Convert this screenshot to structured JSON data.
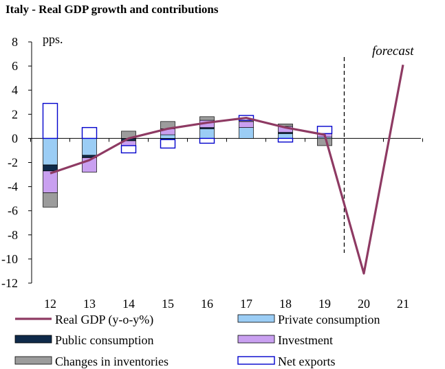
{
  "chart_data": {
    "type": "bar",
    "title": "Italy - Real GDP growth and contributions",
    "ylabel": "pps.",
    "xlabel": "",
    "ylim": [
      -12,
      8
    ],
    "yticks": [
      8,
      6,
      4,
      2,
      0,
      -2,
      -4,
      -6,
      -8,
      -10,
      -12
    ],
    "categories": [
      "12",
      "13",
      "14",
      "15",
      "16",
      "17",
      "18",
      "19",
      "20",
      "21"
    ],
    "annotation": "forecast",
    "forecast_from": "20",
    "colors": {
      "gdp_line": "#8e3a63",
      "private": "#9bcdf5",
      "public": "#0f2a4a",
      "investment": "#c9a0f0",
      "inventories": "#9c9c9c",
      "netexports": "#ffffff",
      "netexports_border": "#0000cc"
    },
    "series": [
      {
        "name": "Private consumption",
        "key": "private",
        "kind": "bar",
        "values": [
          -2.2,
          -1.4,
          0.0,
          0.3,
          0.8,
          0.9,
          0.4,
          0.1,
          null,
          null
        ]
      },
      {
        "name": "Public consumption",
        "key": "public",
        "kind": "bar",
        "values": [
          -0.5,
          -0.2,
          -0.2,
          -0.1,
          0.1,
          0.0,
          0.1,
          0.0,
          null,
          null
        ]
      },
      {
        "name": "Investment",
        "key": "investment",
        "kind": "bar",
        "values": [
          -1.8,
          -1.2,
          -0.4,
          0.5,
          0.6,
          0.5,
          0.5,
          0.3,
          null,
          null
        ]
      },
      {
        "name": "Changes in inventories",
        "key": "inventories",
        "kind": "bar",
        "values": [
          -1.2,
          0.0,
          0.6,
          0.6,
          0.3,
          0.1,
          0.2,
          -0.6,
          null,
          null
        ]
      },
      {
        "name": "Net exports",
        "key": "netexports",
        "kind": "bar",
        "values": [
          2.9,
          0.9,
          -0.6,
          -0.7,
          -0.4,
          0.4,
          -0.3,
          0.6,
          null,
          null
        ]
      },
      {
        "name": "Real GDP (y-o-y%)",
        "key": "gdp_line",
        "kind": "line",
        "values": [
          -2.9,
          -1.8,
          0.0,
          0.8,
          1.3,
          1.7,
          0.9,
          0.3,
          -11.2,
          6.1
        ]
      }
    ],
    "legend": [
      {
        "label": "Real GDP (y-o-y%)",
        "key": "gdp_line",
        "kind": "line"
      },
      {
        "label": "Private consumption",
        "key": "private",
        "kind": "bar"
      },
      {
        "label": "Public consumption",
        "key": "public",
        "kind": "bar"
      },
      {
        "label": "Investment",
        "key": "investment",
        "kind": "bar"
      },
      {
        "label": "Changes in inventories",
        "key": "inventories",
        "kind": "bar"
      },
      {
        "label": "Net exports",
        "key": "netexports",
        "kind": "bar"
      }
    ]
  }
}
